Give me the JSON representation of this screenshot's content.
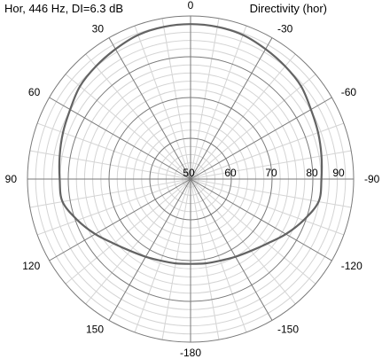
{
  "header": {
    "left": "Hor, 446 Hz, DI=6.3 dB",
    "right": "Directivity (hor)"
  },
  "chart_data": {
    "type": "polar",
    "title": "Directivity (hor)",
    "subtitle": "Hor, 446 Hz, DI=6.3 dB",
    "radial_range": [
      50,
      90
    ],
    "radial_ticks": [
      50,
      60,
      70,
      80,
      90
    ],
    "radial_tick_labels": [
      "50",
      "60",
      "70",
      "80",
      "90"
    ],
    "angle_ticks": [
      0,
      -30,
      -60,
      -90,
      -120,
      -150,
      -180,
      150,
      120,
      90,
      60,
      30
    ],
    "angle_tick_labels": [
      "0",
      "-30",
      "-60",
      "-90",
      "-120",
      "-150",
      "-180",
      "150",
      "120",
      "90",
      "60",
      "30"
    ],
    "grid": true,
    "series": [
      {
        "angles_deg": [
          0,
          10,
          20,
          30,
          40,
          50,
          60,
          70,
          80,
          90,
          100,
          110,
          120,
          130,
          140,
          150,
          160,
          170,
          180
        ],
        "values": [
          88.0,
          87.9,
          87.6,
          86.8,
          86.1,
          85.4,
          84.1,
          83.3,
          82.6,
          82.1,
          81.9,
          79.5,
          77.0,
          74.6,
          73.0,
          72.0,
          71.3,
          71.0,
          70.8
        ],
        "symmetric": true
      }
    ]
  },
  "colors": {
    "grid_light": "#d4d4d4",
    "grid_major": "#7a7a7a",
    "curve": "#636363",
    "text": "#000000"
  }
}
